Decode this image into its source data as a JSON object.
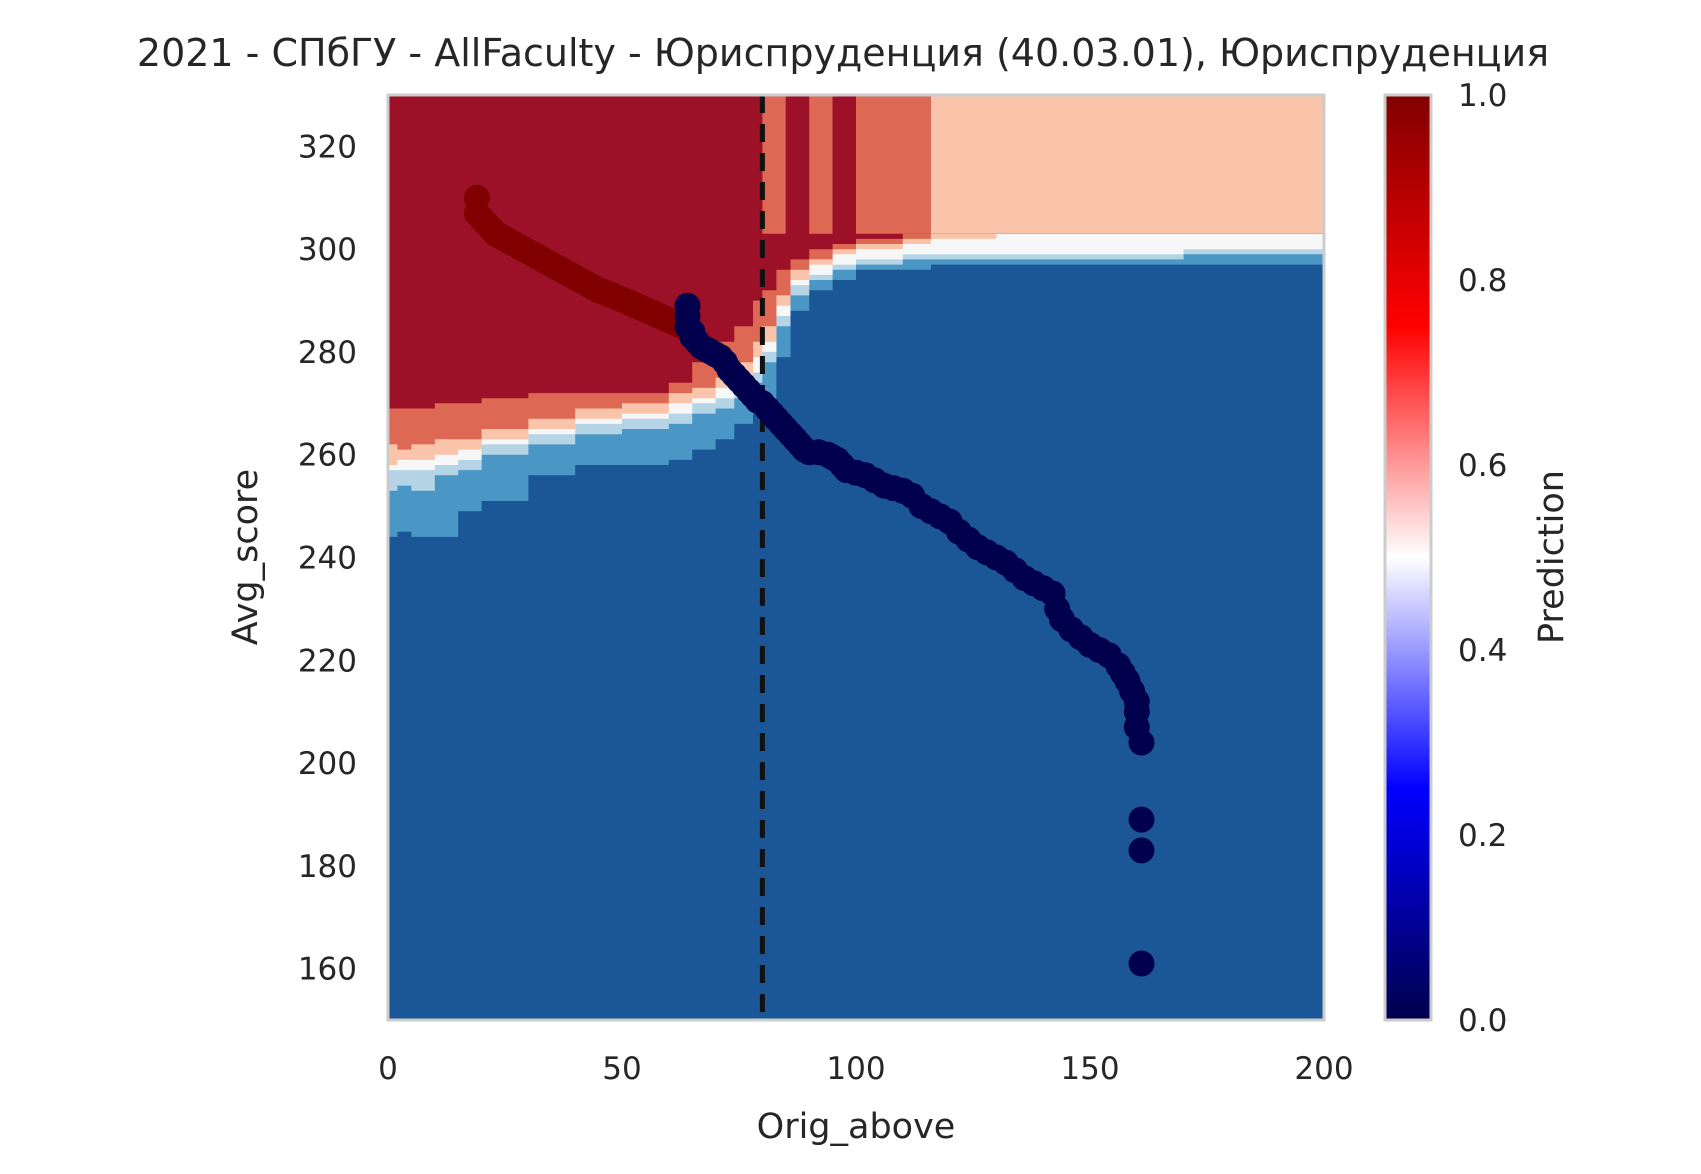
{
  "chart_data": {
    "type": "heatmap",
    "title": "2021 - СПбГУ - AllFaculty - Юриспруденция (40.03.01), Юриспруденция",
    "xlabel": "Orig_above",
    "ylabel": "Avg_score",
    "xlim": [
      0,
      200
    ],
    "ylim": [
      150,
      330
    ],
    "xticks": [
      0,
      50,
      100,
      150,
      200
    ],
    "yticks": [
      160,
      180,
      200,
      220,
      240,
      260,
      280,
      300,
      320
    ],
    "grid": false,
    "colorbar": {
      "label": "Prediction",
      "range": [
        0,
        1
      ],
      "ticks": [
        "0.0",
        "0.2",
        "0.4",
        "0.6",
        "0.8",
        "1.0"
      ],
      "colormap": "seismic",
      "colors": [
        "#00004c",
        "#0000ff",
        "#ffffff",
        "#ff0000",
        "#800000"
      ]
    },
    "threshold_line": {
      "x": 80,
      "style": "dashed",
      "color": "#111111"
    },
    "contour_levels": {
      "colors": [
        "#1b5796",
        "#4a97c6",
        "#b5d5e7",
        "#f7f7f7",
        "#f9c4a9",
        "#dd6853",
        "#9c1127"
      ],
      "boundaries": {
        "x": [
          0,
          2,
          5,
          10,
          15,
          20,
          30,
          40,
          50,
          60,
          65,
          70,
          74,
          78,
          80,
          83,
          86,
          90,
          95,
          100,
          110,
          116,
          130,
          150,
          170,
          200
        ],
        "b1": [
          244,
          245,
          244,
          244,
          249,
          251,
          256,
          258,
          258,
          259,
          261,
          263,
          266,
          268,
          271,
          279,
          288,
          292,
          294,
          296,
          296,
          297,
          297,
          297,
          297,
          297
        ],
        "b2": [
          253,
          254,
          253,
          256,
          257,
          260,
          262,
          264,
          265,
          266,
          268,
          269,
          271,
          274,
          278,
          285,
          291,
          294,
          296,
          297,
          298,
          298,
          298,
          298,
          299,
          299
        ],
        "b3": [
          257,
          257,
          257,
          258,
          259,
          262,
          264,
          266,
          267,
          268,
          270,
          271,
          273,
          276,
          280,
          287,
          293,
          295,
          297,
          298,
          299,
          299,
          299,
          299,
          300,
          300
        ],
        "b4": [
          258,
          259,
          259,
          260,
          261,
          263,
          265,
          267,
          268,
          270,
          271,
          273,
          275,
          279,
          282,
          289,
          294,
          297,
          299,
          300,
          301,
          302,
          303,
          303,
          303,
          303
        ],
        "b5": [
          262,
          261,
          262,
          263,
          263,
          265,
          267,
          269,
          270,
          272,
          273,
          275,
          278,
          282,
          285,
          291,
          296,
          298,
          300,
          301,
          302,
          303,
          303,
          303,
          303,
          303
        ],
        "b6": [
          269,
          269,
          269,
          270,
          270,
          271,
          272,
          272,
          272,
          274,
          278,
          282,
          285,
          290,
          292,
          296,
          298,
          300,
          301,
          302,
          303,
          303,
          303,
          303,
          303,
          303
        ]
      },
      "top_bands": [
        {
          "x0": 80,
          "x1": 85,
          "level": 5
        },
        {
          "x0": 85,
          "x1": 90,
          "level": 6
        },
        {
          "x0": 90,
          "x1": 95,
          "level": 5
        },
        {
          "x0": 95,
          "x1": 100,
          "level": 6
        },
        {
          "x0": 100,
          "x1": 116,
          "level": 5
        },
        {
          "x0": 116,
          "x1": 200,
          "level": 4
        }
      ]
    },
    "series": [
      {
        "color": "#800000",
        "points": [
          [
            19,
            310
          ],
          [
            19,
            307
          ],
          [
            20,
            306
          ],
          [
            21,
            305
          ],
          [
            22,
            304
          ],
          [
            23,
            303
          ],
          [
            24,
            302.5
          ],
          [
            25,
            302
          ],
          [
            26,
            301.5
          ],
          [
            27,
            301
          ],
          [
            28,
            300.5
          ],
          [
            29,
            300
          ],
          [
            30,
            299.5
          ],
          [
            31,
            299
          ],
          [
            32,
            298.5
          ],
          [
            33,
            298
          ],
          [
            34,
            297.5
          ],
          [
            35,
            297
          ],
          [
            36,
            296.5
          ],
          [
            37,
            296
          ],
          [
            38,
            295.5
          ],
          [
            39,
            295
          ],
          [
            40,
            294.5
          ],
          [
            41,
            294
          ],
          [
            42,
            293.5
          ],
          [
            43,
            293
          ],
          [
            44,
            292.5
          ],
          [
            45,
            292
          ],
          [
            46,
            291.7
          ],
          [
            47,
            291.3
          ],
          [
            48,
            291
          ],
          [
            49,
            290.6
          ],
          [
            50,
            290.2
          ],
          [
            51,
            289.8
          ],
          [
            52,
            289.4
          ],
          [
            53,
            289
          ],
          [
            54,
            288.6
          ],
          [
            55,
            288.2
          ],
          [
            56,
            287.8
          ],
          [
            57,
            287.4
          ],
          [
            58,
            287
          ],
          [
            59,
            286.6
          ],
          [
            60,
            286.2
          ],
          [
            61,
            285.8
          ],
          [
            62,
            285.4
          ],
          [
            63,
            285
          ]
        ]
      },
      {
        "color": "#00004c",
        "points": [
          [
            64,
            289
          ],
          [
            64,
            287
          ],
          [
            64,
            285
          ],
          [
            65,
            284
          ],
          [
            65,
            283
          ],
          [
            66,
            282
          ],
          [
            67,
            281
          ],
          [
            68,
            280.5
          ],
          [
            69,
            280
          ],
          [
            70,
            279.5
          ],
          [
            71,
            279
          ],
          [
            72,
            278
          ],
          [
            73,
            276.5
          ],
          [
            74,
            275.5
          ],
          [
            75,
            274.5
          ],
          [
            76,
            273.5
          ],
          [
            77,
            272.5
          ],
          [
            78,
            271.5
          ],
          [
            79,
            270.5
          ],
          [
            80,
            270
          ],
          [
            81,
            269
          ],
          [
            82,
            268
          ],
          [
            83,
            267
          ],
          [
            84,
            266
          ],
          [
            85,
            265
          ],
          [
            86,
            264
          ],
          [
            87,
            263
          ],
          [
            88,
            262
          ],
          [
            89,
            261
          ],
          [
            90,
            260.5
          ],
          [
            92,
            260.5
          ],
          [
            94,
            260
          ],
          [
            95,
            259.5
          ],
          [
            96,
            259
          ],
          [
            97,
            258
          ],
          [
            98,
            257
          ],
          [
            100,
            256.5
          ],
          [
            102,
            256
          ],
          [
            104,
            255
          ],
          [
            106,
            254
          ],
          [
            108,
            253.5
          ],
          [
            110,
            253
          ],
          [
            112,
            252
          ],
          [
            114,
            250
          ],
          [
            116,
            249
          ],
          [
            118,
            248
          ],
          [
            120,
            247
          ],
          [
            122,
            245
          ],
          [
            124,
            243.5
          ],
          [
            126,
            242
          ],
          [
            128,
            241
          ],
          [
            130,
            240
          ],
          [
            132,
            239
          ],
          [
            134,
            237.5
          ],
          [
            136,
            236
          ],
          [
            138,
            235
          ],
          [
            140,
            234
          ],
          [
            142,
            233
          ],
          [
            143,
            230
          ],
          [
            144,
            228
          ],
          [
            146,
            226
          ],
          [
            148,
            224.5
          ],
          [
            150,
            223
          ],
          [
            152,
            222
          ],
          [
            154,
            221
          ],
          [
            156,
            219
          ],
          [
            157,
            217.5
          ],
          [
            158,
            216
          ],
          [
            159,
            214
          ],
          [
            160,
            212
          ],
          [
            160,
            210
          ],
          [
            160,
            207
          ],
          [
            161,
            204
          ],
          [
            161,
            189
          ],
          [
            161,
            183
          ],
          [
            161,
            161
          ]
        ]
      }
    ]
  }
}
